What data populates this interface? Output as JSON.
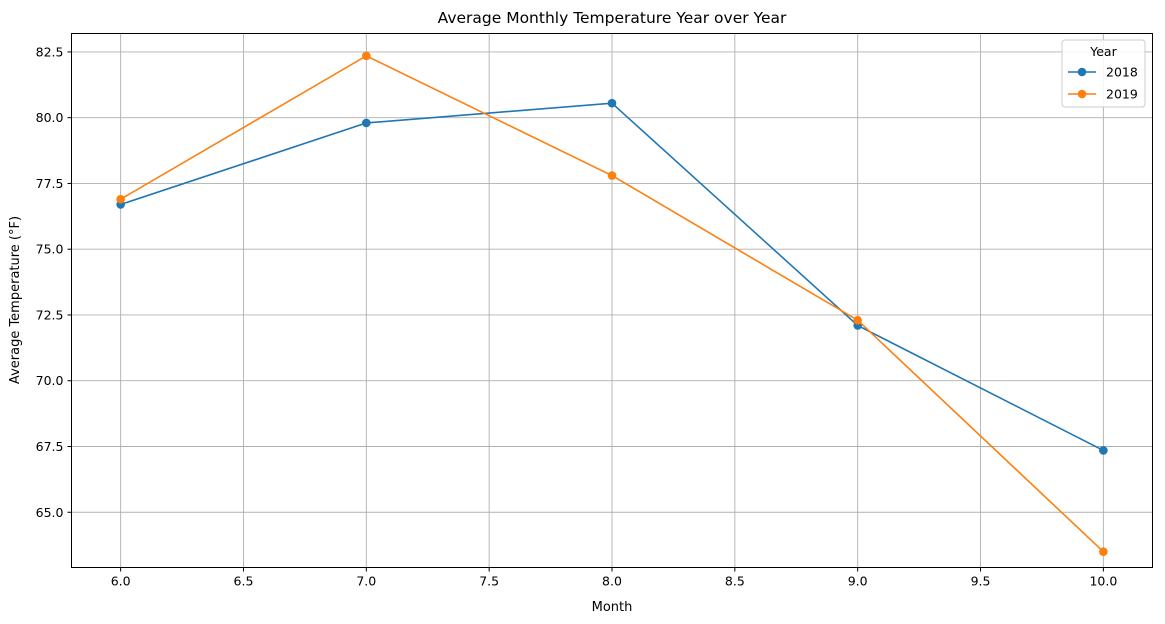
{
  "chart_data": {
    "type": "line",
    "title": "Average Monthly Temperature Year over Year",
    "xlabel": "Month",
    "ylabel": "Average Temperature (°F)",
    "xlim": [
      5.8,
      10.2
    ],
    "ylim": [
      62.9,
      83.2
    ],
    "xticks": [
      6.0,
      6.5,
      7.0,
      7.5,
      8.0,
      8.5,
      9.0,
      9.5,
      10.0
    ],
    "xtick_labels": [
      "6.0",
      "6.5",
      "7.0",
      "7.5",
      "8.0",
      "8.5",
      "9.0",
      "9.5",
      "10.0"
    ],
    "yticks": [
      65.0,
      67.5,
      70.0,
      72.5,
      75.0,
      77.5,
      80.0,
      82.5
    ],
    "ytick_labels": [
      "65.0",
      "67.5",
      "70.0",
      "72.5",
      "75.0",
      "77.5",
      "80.0",
      "82.5"
    ],
    "grid": true,
    "legend": {
      "title": "Year",
      "placement": "top-right"
    },
    "x": [
      6,
      7,
      8,
      9,
      10
    ],
    "series": [
      {
        "name": "2018",
        "color": "#1f77b4",
        "marker": "circle",
        "values": [
          76.7,
          79.8,
          80.55,
          72.1,
          67.35
        ]
      },
      {
        "name": "2019",
        "color": "#ff7f0e",
        "marker": "circle",
        "values": [
          76.9,
          82.35,
          77.8,
          72.3,
          63.5
        ]
      }
    ]
  }
}
